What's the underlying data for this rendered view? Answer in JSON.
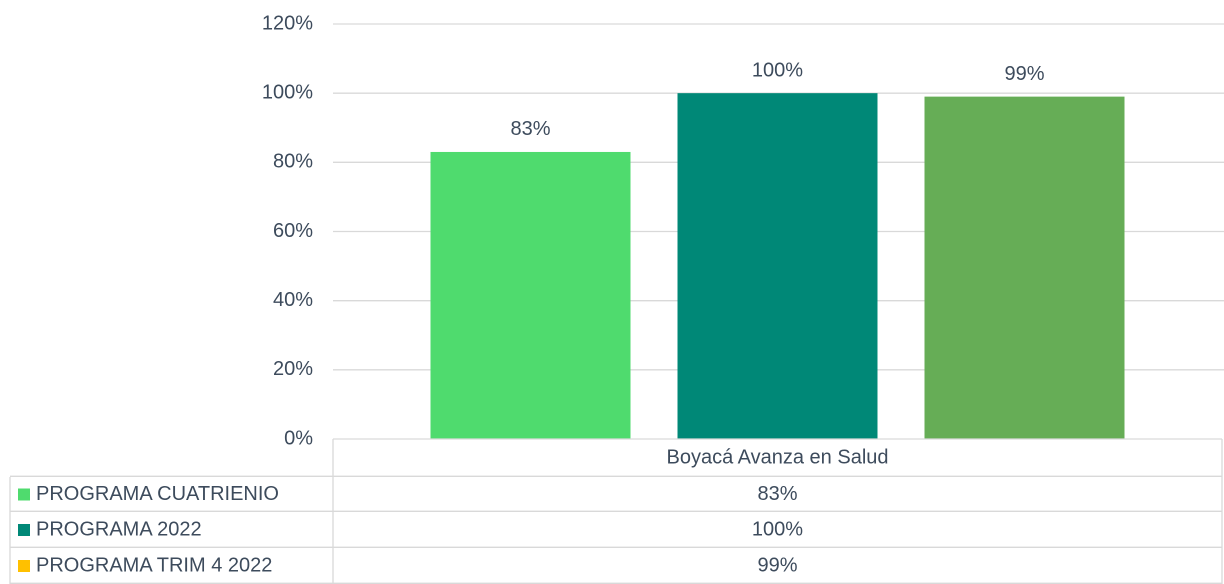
{
  "chart_data": {
    "type": "bar",
    "categories": [
      "Boyacá Avanza en Salud"
    ],
    "series": [
      {
        "name": "PROGRAMA CUATRIENIO",
        "color": "#4fdb6e",
        "values": [
          83
        ],
        "value_labels": [
          "83%"
        ]
      },
      {
        "name": " PROGRAMA 2022",
        "color": "#008877",
        "values": [
          100
        ],
        "value_labels": [
          "100%"
        ]
      },
      {
        "name": "PROGRAMA TRIM 4 2022",
        "color": "#66ad56",
        "key_color": "#ffc000",
        "values": [
          99
        ],
        "value_labels": [
          "99%"
        ]
      }
    ],
    "ylim": [
      0,
      120
    ],
    "yticks": [
      {
        "value": 0,
        "label": "0%"
      },
      {
        "value": 20,
        "label": "20%"
      },
      {
        "value": 40,
        "label": "40%"
      },
      {
        "value": 60,
        "label": "60%"
      },
      {
        "value": 80,
        "label": "80%"
      },
      {
        "value": 100,
        "label": "100%"
      },
      {
        "value": 120,
        "label": "120%"
      }
    ],
    "grid": true,
    "data_table": true
  }
}
